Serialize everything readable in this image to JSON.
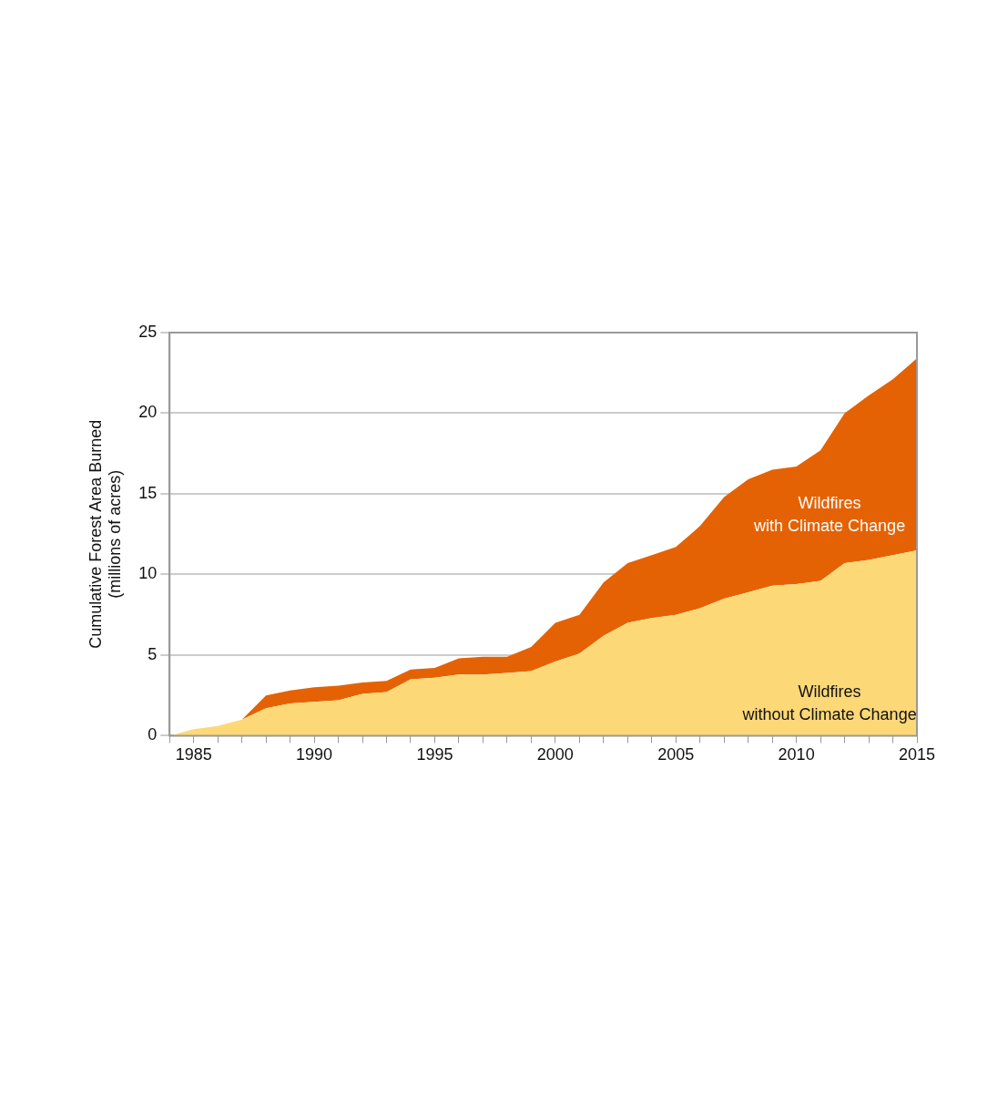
{
  "chart_data": {
    "type": "area",
    "stacked": true,
    "ylabel": "Cumulative Forest Area Burned\n(millions of acres)",
    "x": [
      1984,
      1985,
      1986,
      1987,
      1988,
      1989,
      1990,
      1991,
      1992,
      1993,
      1994,
      1995,
      1996,
      1997,
      1998,
      1999,
      2000,
      2001,
      2002,
      2003,
      2004,
      2005,
      2006,
      2007,
      2008,
      2009,
      2010,
      2011,
      2012,
      2013,
      2014,
      2015
    ],
    "series": [
      {
        "name": "Wildfires\nwithout Climate Change",
        "color": "#fdd877",
        "values": [
          0,
          0.4,
          0.6,
          1.0,
          1.7,
          2.0,
          2.1,
          2.2,
          2.6,
          2.7,
          3.5,
          3.6,
          3.8,
          3.8,
          3.9,
          4.0,
          4.6,
          5.1,
          6.2,
          7.0,
          7.3,
          7.5,
          7.9,
          8.5,
          8.9,
          9.3,
          9.4,
          9.6,
          10.7,
          10.9,
          11.2,
          11.5
        ]
      },
      {
        "name": "Wildfires\nwith Climate Change",
        "color": "#e56204",
        "values": [
          null,
          null,
          null,
          0,
          0.8,
          0.8,
          0.9,
          0.9,
          0.7,
          0.7,
          0.6,
          0.6,
          1.0,
          1.1,
          1.0,
          1.5,
          2.4,
          2.4,
          3.3,
          3.7,
          3.9,
          4.2,
          5.1,
          6.3,
          7.0,
          7.2,
          7.3,
          8.1,
          9.3,
          10.2,
          10.9,
          11.9
        ]
      }
    ],
    "xlim": [
      1984,
      2015
    ],
    "xticks": [
      {
        "value": 1984,
        "label": null
      },
      1985,
      {
        "value": 1986,
        "label": null
      },
      {
        "value": 1987,
        "label": null
      },
      {
        "value": 1988,
        "label": null
      },
      {
        "value": 1989,
        "label": null
      },
      1990,
      {
        "value": 1991,
        "label": null
      },
      {
        "value": 1992,
        "label": null
      },
      {
        "value": 1993,
        "label": null
      },
      {
        "value": 1994,
        "label": null
      },
      1995,
      {
        "value": 1996,
        "label": null
      },
      {
        "value": 1997,
        "label": null
      },
      {
        "value": 1998,
        "label": null
      },
      {
        "value": 1999,
        "label": null
      },
      2000,
      {
        "value": 2001,
        "label": null
      },
      {
        "value": 2002,
        "label": null
      },
      {
        "value": 2003,
        "label": null
      },
      {
        "value": 2004,
        "label": null
      },
      2005,
      {
        "value": 2006,
        "label": null
      },
      {
        "value": 2007,
        "label": null
      },
      {
        "value": 2008,
        "label": null
      },
      {
        "value": 2009,
        "label": null
      },
      2010,
      {
        "value": 2011,
        "label": null
      },
      {
        "value": 2012,
        "label": null
      },
      {
        "value": 2013,
        "label": null
      },
      {
        "value": 2014,
        "label": null
      },
      2015
    ],
    "ylim": [
      0,
      25
    ],
    "yticks": [
      0,
      5,
      10,
      15,
      20,
      25
    ],
    "grid": "y",
    "legend": false
  }
}
